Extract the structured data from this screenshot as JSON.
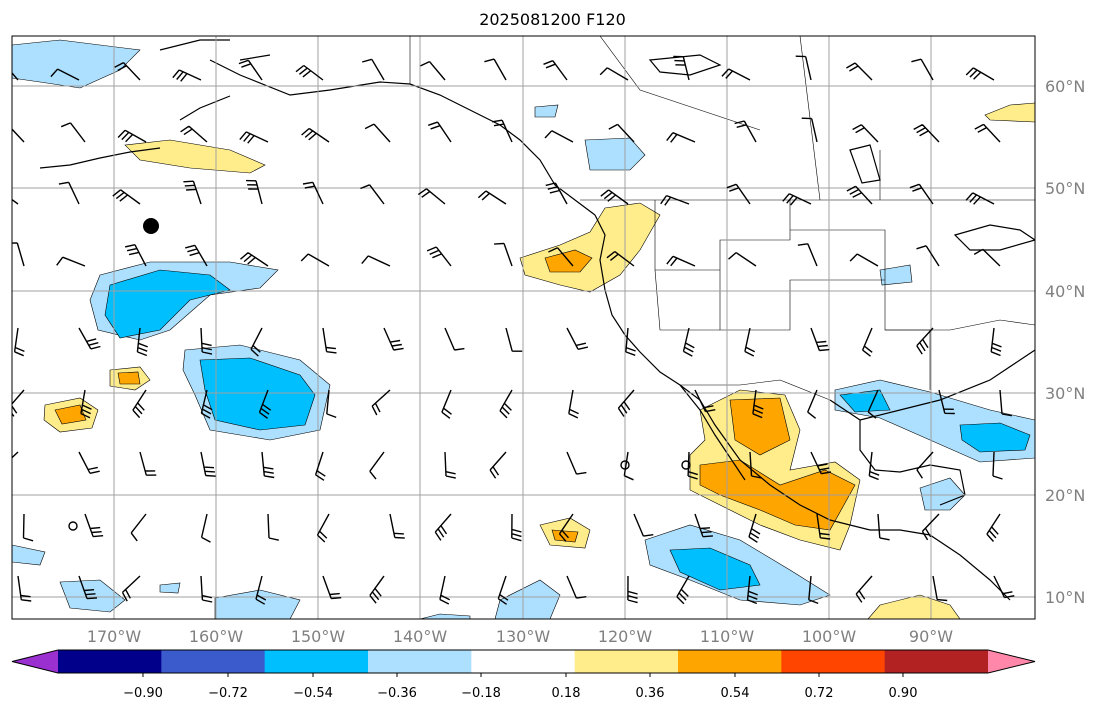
{
  "title": "2025081200 F120",
  "latitude_labels": [
    "60°N",
    "50°N",
    "40°N",
    "30°N",
    "20°N",
    "10°N"
  ],
  "longitude_labels": [
    "170°W",
    "160°W",
    "150°W",
    "140°W",
    "130°W",
    "120°W",
    "110°W",
    "100°W",
    "90°W"
  ],
  "colorbar": {
    "ticks": [
      "−0.90",
      "−0.72",
      "−0.54",
      "−0.36",
      "−0.18",
      "0.18",
      "0.36",
      "0.54",
      "0.72",
      "0.90"
    ],
    "colors": [
      "#9b30d0",
      "#00008b",
      "#3b5bcc",
      "#00bfff",
      "#ade0ff",
      "#ffffff",
      "#ffec8b",
      "#ffa500",
      "#ff4500",
      "#b22222",
      "#ff88aa"
    ]
  },
  "colors": {
    "grid": "#a0a0a0",
    "coast": "#000000",
    "text": "#808080"
  }
}
